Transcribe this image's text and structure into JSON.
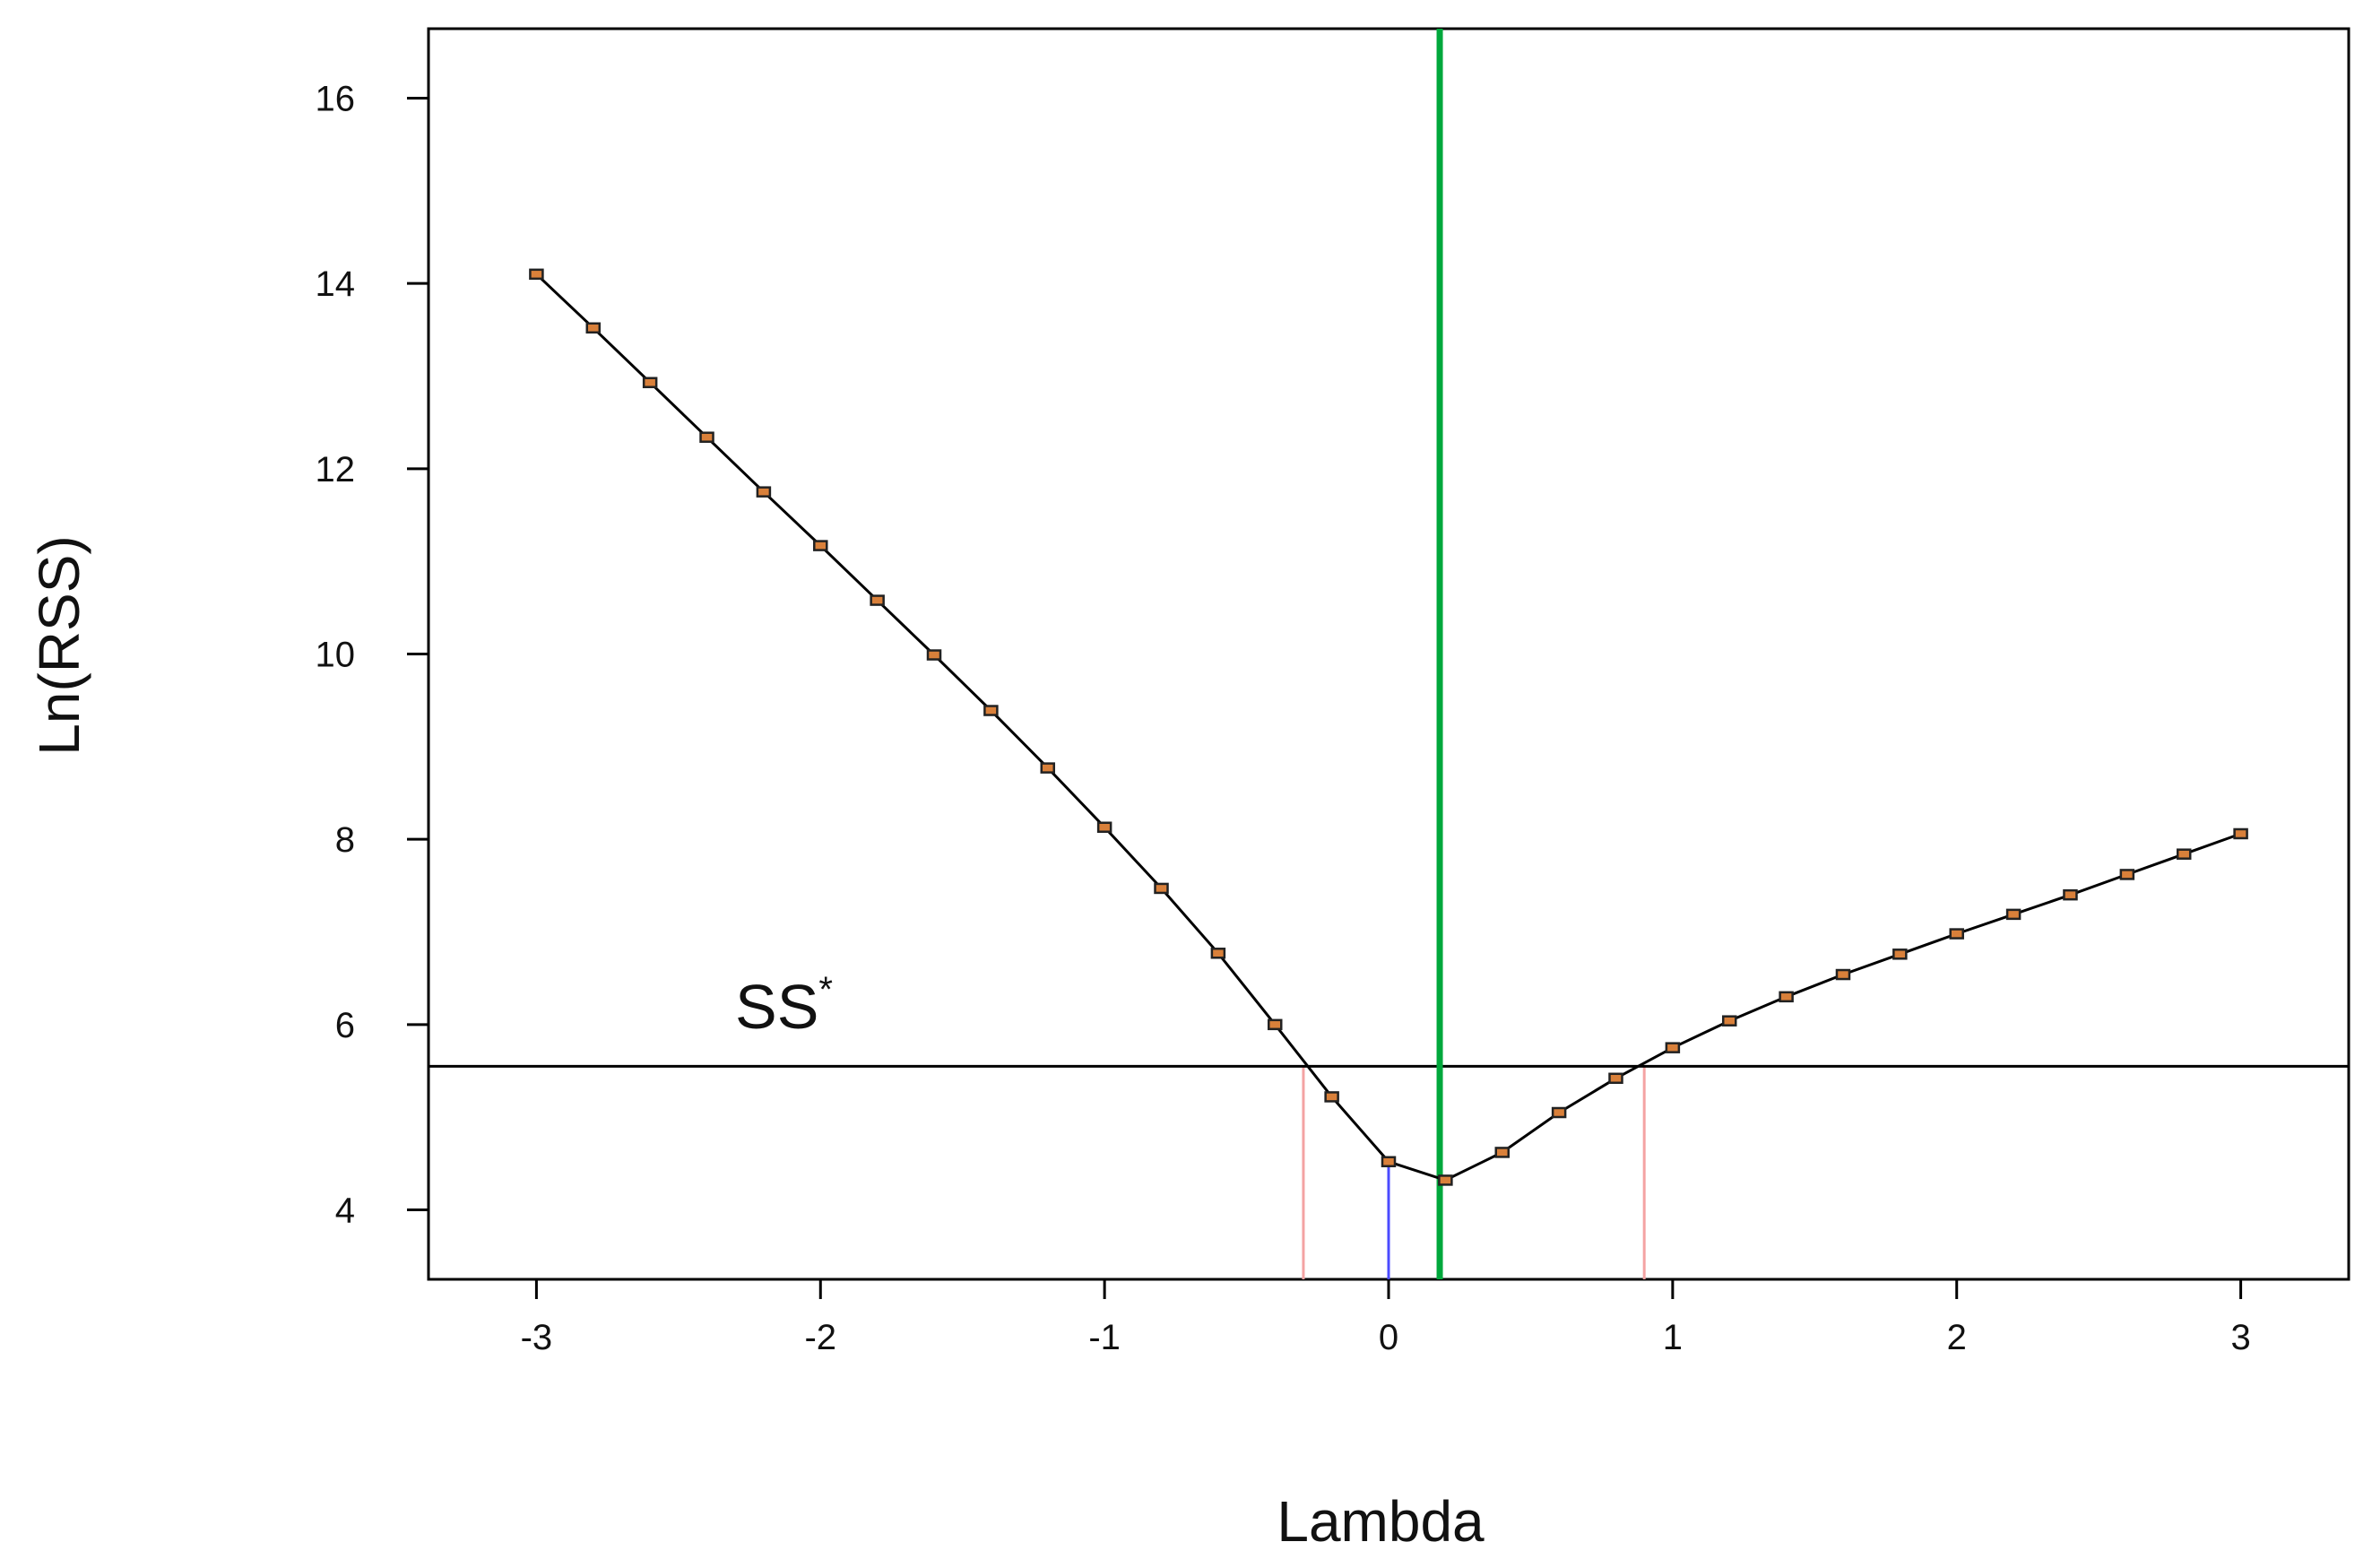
{
  "chart_data": {
    "type": "line",
    "title": "",
    "xlabel": "Lambda",
    "ylabel": "Ln(RSS)",
    "xlim": [
      -3.38,
      3.38
    ],
    "ylim": [
      3.25,
      16.75
    ],
    "x_ticks": [
      -3,
      -2,
      -1,
      0,
      1,
      2,
      3
    ],
    "x_tick_labels": [
      "-3",
      "-2",
      "-1",
      "0",
      "1",
      "2",
      "3"
    ],
    "y_ticks": [
      4,
      6,
      8,
      10,
      12,
      14,
      16
    ],
    "y_tick_labels": [
      "4",
      "6",
      "8",
      "10",
      "12",
      "14",
      "16"
    ],
    "grid": false,
    "legend": "none",
    "series": [
      {
        "x": [
          -3.0,
          -2.8,
          -2.6,
          -2.4,
          -2.2,
          -2.0,
          -1.8,
          -1.6,
          -1.4,
          -1.2,
          -1.0,
          -0.8,
          -0.6,
          -0.4,
          -0.2,
          0.0,
          0.2,
          0.4,
          0.6,
          0.8,
          1.0,
          1.2,
          1.4,
          1.6,
          1.8,
          2.0,
          2.2,
          2.4,
          2.6,
          2.8,
          3.0
        ],
        "y": [
          14.1,
          13.52,
          12.93,
          12.34,
          11.75,
          11.17,
          10.58,
          9.99,
          9.39,
          8.77,
          8.13,
          7.47,
          6.77,
          6.0,
          5.22,
          4.52,
          4.32,
          4.62,
          5.05,
          5.42,
          5.75,
          6.04,
          6.3,
          6.54,
          6.76,
          6.98,
          7.19,
          7.4,
          7.62,
          7.84,
          8.06
        ],
        "line_color": "#000000",
        "marker_color": "#d9803a"
      }
    ],
    "annotations": {
      "threshold_line": {
        "y": 5.55,
        "label": "SS",
        "label_superscript": "*",
        "color": "#000000"
      },
      "optimum_line": {
        "x": 0.18,
        "color": "#00a83c"
      },
      "reference_line": {
        "x": 0.0,
        "y_top": 4.52,
        "color": "#4b4bff"
      },
      "ci_lines": [
        {
          "x": -0.3,
          "y_top": 5.55,
          "color": "#f4a3a3"
        },
        {
          "x": 0.9,
          "y_top": 5.55,
          "color": "#f4a3a3"
        }
      ]
    }
  }
}
